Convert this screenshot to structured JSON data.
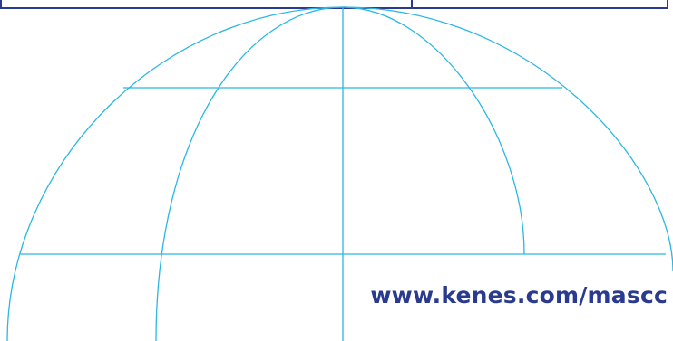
{
  "website": {
    "url_text": "www.kenes.com/mascc"
  },
  "colors": {
    "globe_line": "#2ab7e3",
    "frame": "#2a3b8f",
    "url_text": "#2a3b8f"
  },
  "graphics": {
    "globe": "wireframe-globe-icon"
  }
}
